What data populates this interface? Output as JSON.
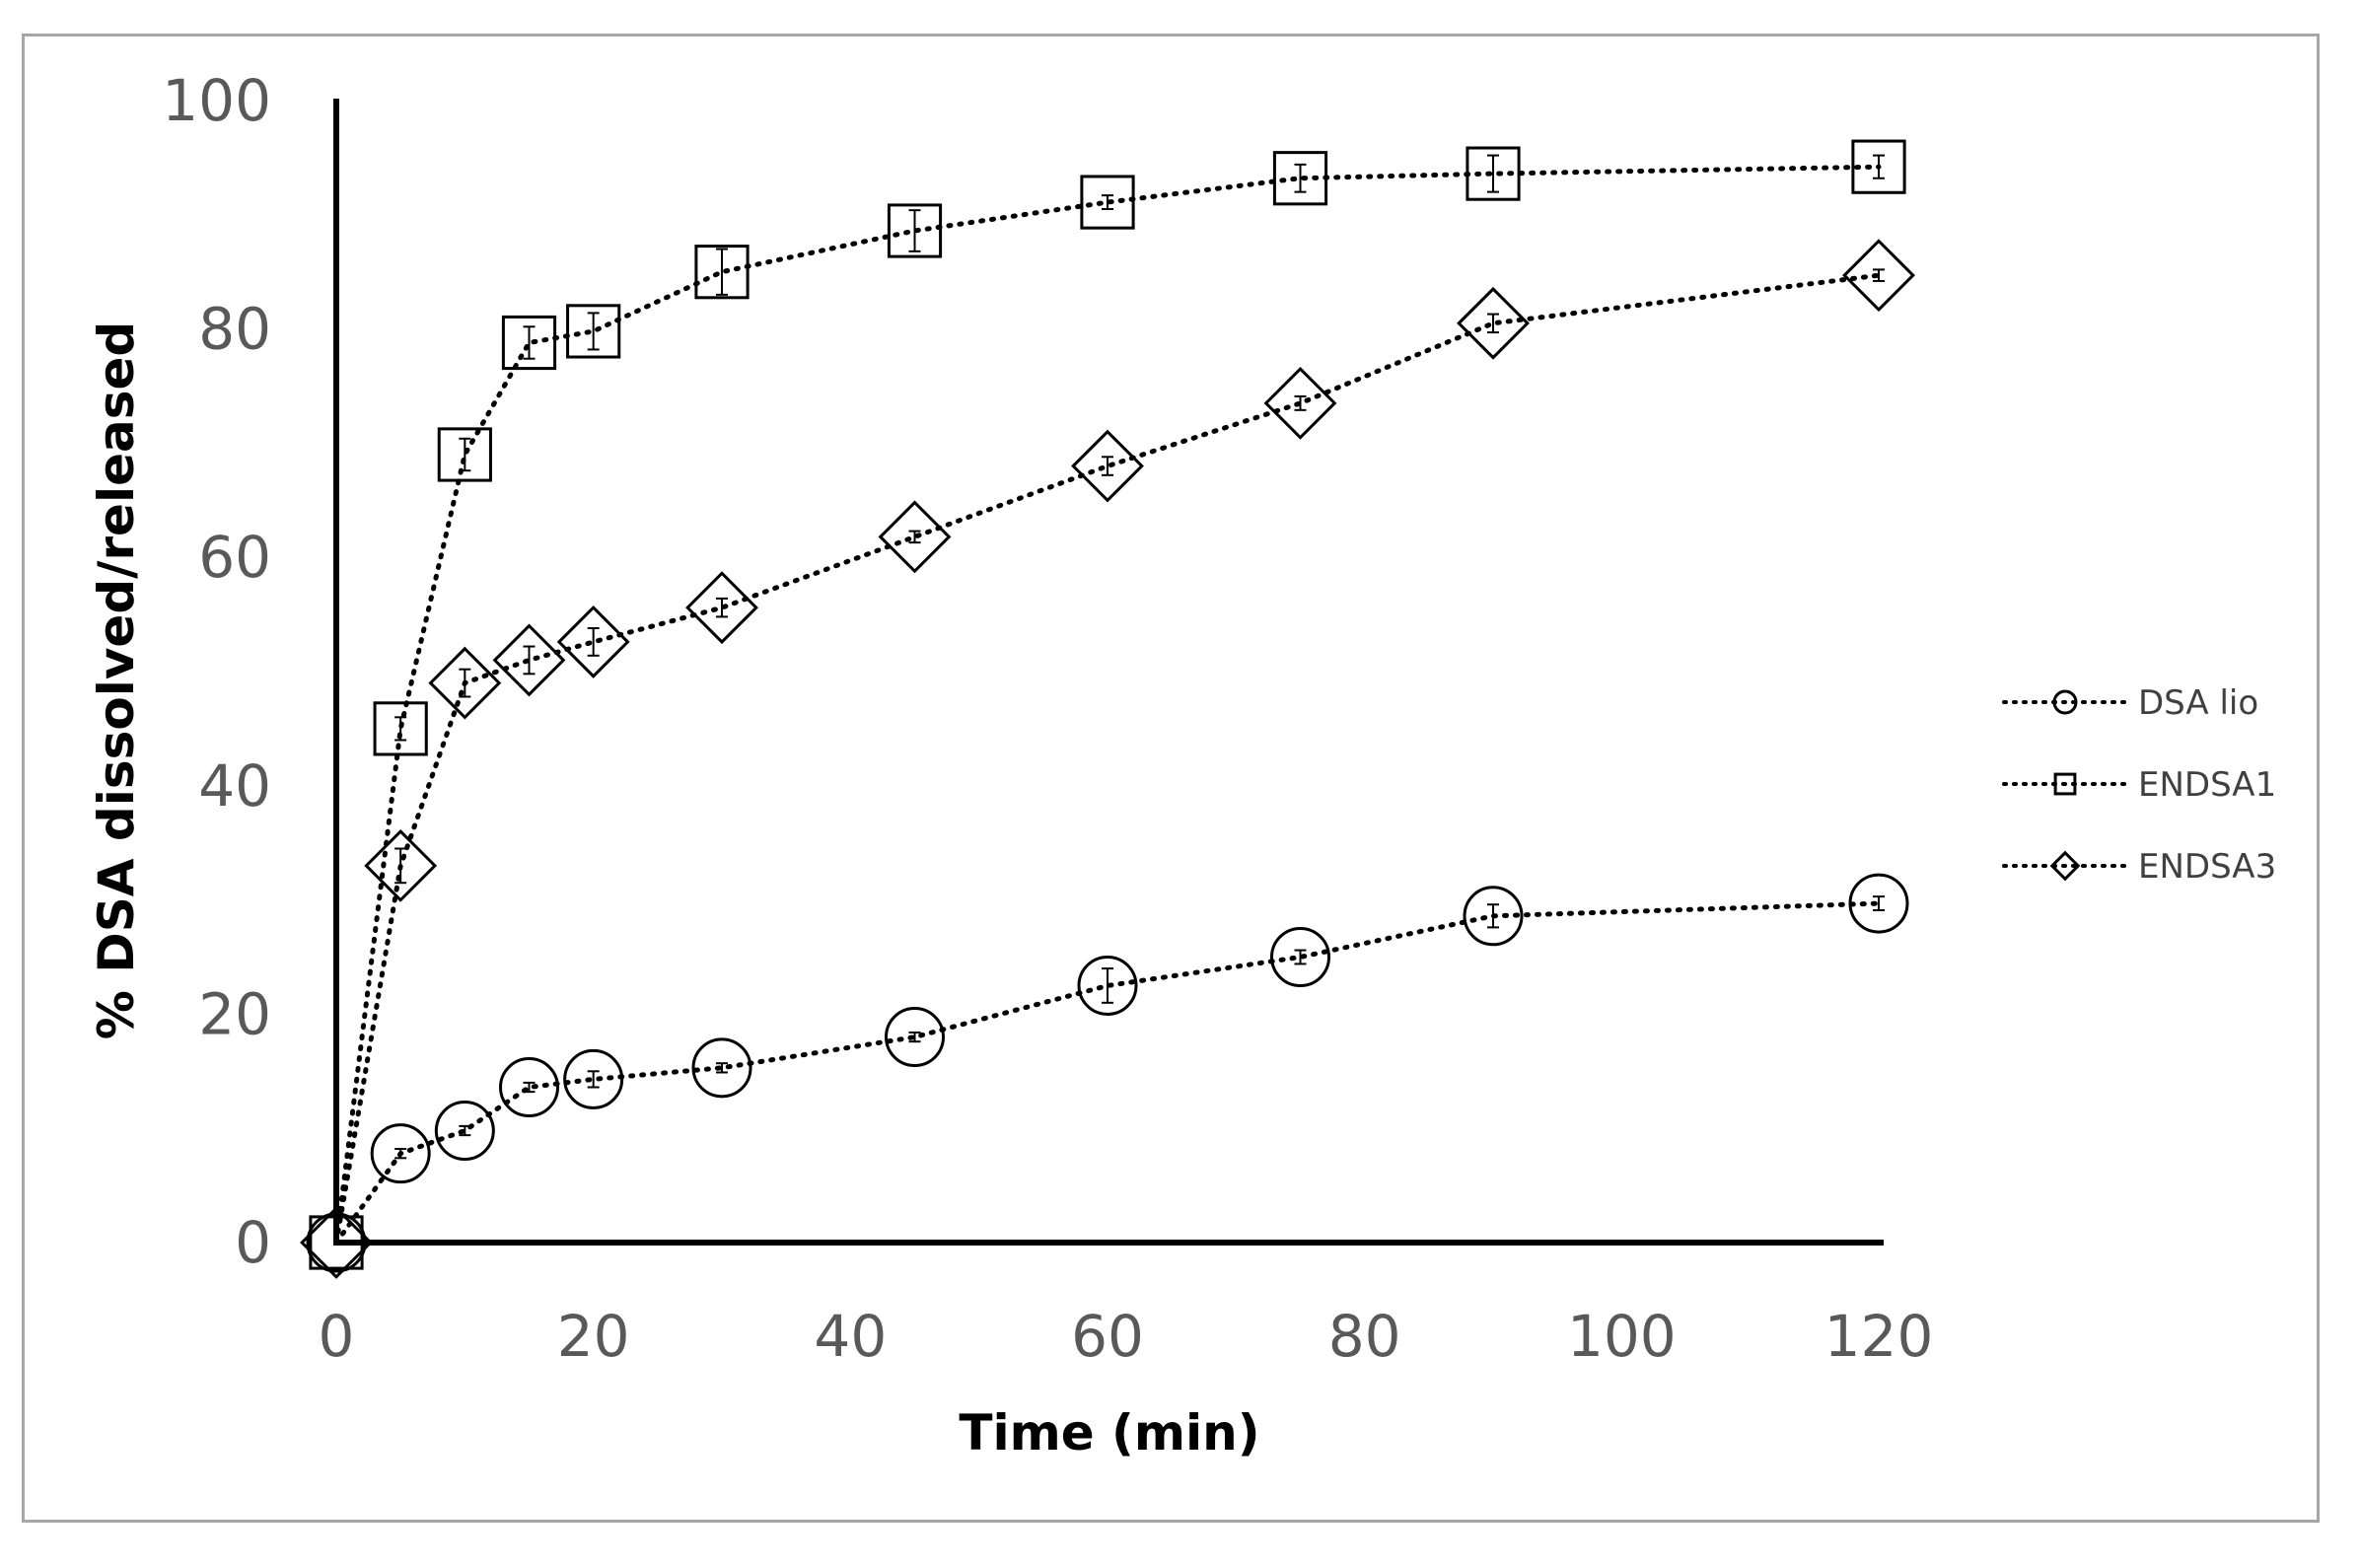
{
  "chart_data": {
    "type": "line",
    "title": "",
    "xlabel": "Time (min)",
    "ylabel": "% DSA dissolved/released",
    "xlim": [
      0,
      120
    ],
    "ylim": [
      0,
      100
    ],
    "xticks": [
      0,
      20,
      40,
      60,
      80,
      100,
      120
    ],
    "yticks": [
      0,
      20,
      40,
      60,
      80,
      100
    ],
    "xtick_labels": [
      "0",
      "20",
      "40",
      "60",
      "80",
      "100",
      "120"
    ],
    "ytick_labels": [
      "0",
      "20",
      "40",
      "60",
      "80",
      "100"
    ],
    "grid": false,
    "legend_position": "right",
    "line_style": "dotted",
    "line_color": "#000000",
    "series": [
      {
        "name": "DSA lio",
        "marker": "circle",
        "x": [
          0,
          5,
          10,
          15,
          20,
          30,
          45,
          60,
          75,
          90,
          120
        ],
        "y": [
          0,
          7.8,
          9.8,
          13.6,
          14.3,
          15.3,
          18.0,
          22.5,
          25.0,
          28.6,
          29.7
        ],
        "error": [
          0,
          0.4,
          0.4,
          0.4,
          0.7,
          0.4,
          0.4,
          1.5,
          0.6,
          1.0,
          0.6
        ]
      },
      {
        "name": "ENDSA1",
        "marker": "square",
        "x": [
          0,
          5,
          10,
          15,
          20,
          30,
          45,
          60,
          75,
          90,
          120
        ],
        "y": [
          0,
          45.0,
          69.0,
          78.8,
          79.8,
          85.0,
          88.6,
          91.1,
          93.2,
          93.6,
          94.2
        ],
        "error": [
          0,
          1.0,
          1.4,
          1.4,
          1.6,
          2.0,
          1.8,
          0.6,
          1.2,
          1.6,
          1.0
        ]
      },
      {
        "name": "ENDSA3",
        "marker": "diamond",
        "x": [
          0,
          5,
          10,
          15,
          20,
          30,
          45,
          60,
          75,
          90,
          120
        ],
        "y": [
          0,
          33.0,
          49.0,
          51.0,
          52.6,
          55.6,
          61.8,
          68.0,
          73.5,
          80.5,
          84.7
        ],
        "error": [
          0,
          1.5,
          1.2,
          1.2,
          1.2,
          0.8,
          0.5,
          0.8,
          0.6,
          0.8,
          0.5
        ]
      }
    ]
  }
}
